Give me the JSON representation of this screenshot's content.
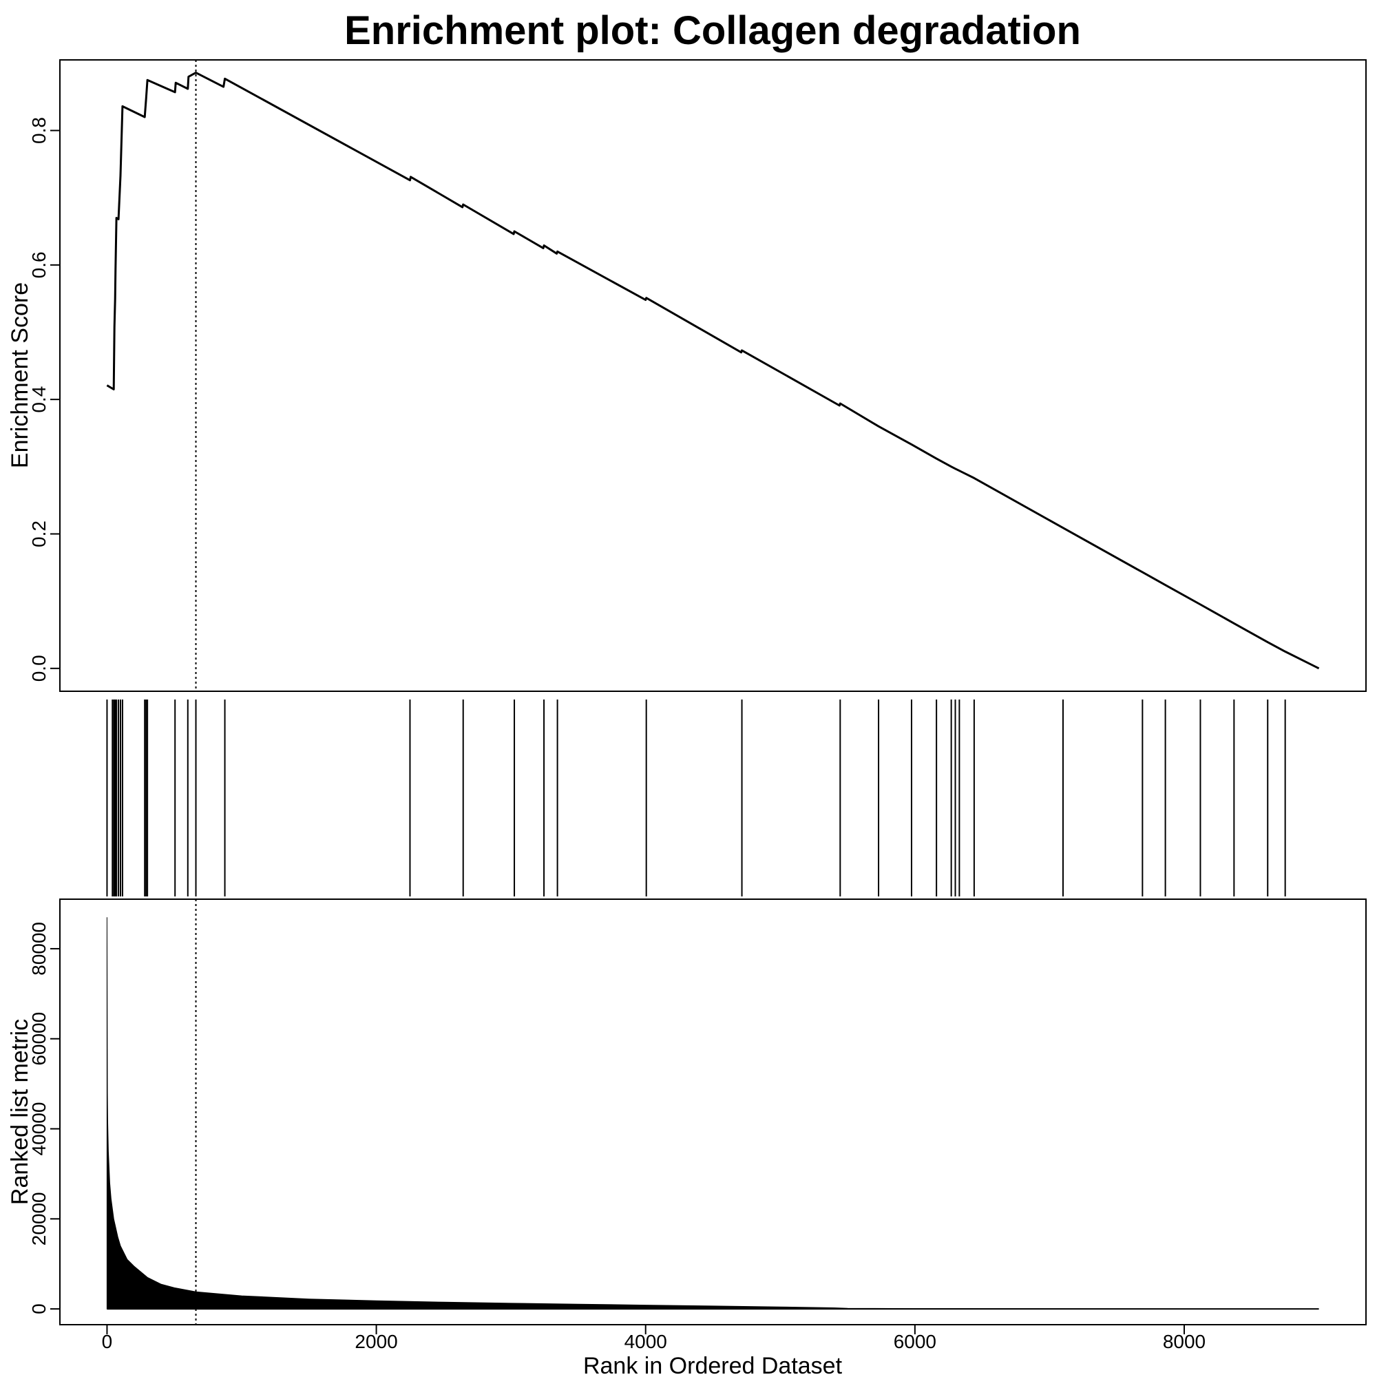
{
  "chart_data": {
    "type": "line",
    "title": "Enrichment plot: Collagen degradation",
    "xlabel": "Rank in Ordered Dataset",
    "xlim": [
      -350,
      9350
    ],
    "x_ticks": [
      0,
      2000,
      4000,
      6000,
      8000
    ],
    "x_tick_labels": [
      "0",
      "2000",
      "4000",
      "6000",
      "8000"
    ],
    "panels": {
      "enrichment": {
        "ylabel": "Enrichment Score",
        "ylim": [
          -0.034,
          0.905
        ],
        "y_ticks": [
          0.0,
          0.2,
          0.4,
          0.6,
          0.8
        ],
        "y_tick_labels": [
          "0.0",
          "0.2",
          "0.4",
          "0.6",
          "0.8"
        ],
        "series": [
          {
            "x": [
              0,
              50,
              55,
              60,
              63,
              70,
              85,
              100,
              115,
              280,
              290,
              300,
              505,
              510,
              600,
              605,
              660,
              865,
              875,
              2250,
              2255,
              2640,
              2645,
              3020,
              3025,
              3240,
              3245,
              3340,
              3345,
              4000,
              4005,
              4710,
              4715,
              5440,
              5445,
              5730,
              5975,
              6160,
              6270,
              6300,
              6330,
              6440,
              7100,
              7690,
              7860,
              8120,
              8370,
              8620,
              8750,
              9000
            ],
            "y": [
              0.421,
              0.415,
              0.508,
              0.549,
              0.594,
              0.67,
              0.668,
              0.733,
              0.836,
              0.82,
              0.847,
              0.875,
              0.857,
              0.871,
              0.862,
              0.88,
              0.886,
              0.865,
              0.877,
              0.726,
              0.731,
              0.686,
              0.69,
              0.646,
              0.65,
              0.625,
              0.629,
              0.617,
              0.62,
              0.548,
              0.551,
              0.47,
              0.473,
              0.391,
              0.394,
              0.36,
              0.333,
              0.312,
              0.3,
              0.297,
              0.294,
              0.283,
              0.209,
              0.143,
              0.124,
              0.095,
              0.067,
              0.039,
              0.025,
              0.0
            ]
          }
        ],
        "peak_rank": 660
      },
      "hits": {
        "ranks": [
          0,
          40,
          50,
          55,
          60,
          63,
          70,
          85,
          100,
          115,
          280,
          290,
          300,
          505,
          600,
          660,
          875,
          2250,
          2645,
          3025,
          3245,
          3345,
          4005,
          4715,
          5445,
          5730,
          5975,
          6160,
          6270,
          6300,
          6330,
          6440,
          7100,
          7690,
          7860,
          8120,
          8370,
          8620,
          8750
        ]
      },
      "metric": {
        "type": "area",
        "ylabel": "Ranked list metric",
        "ylim": [
          -3500,
          91000
        ],
        "y_ticks": [
          0,
          20000,
          40000,
          60000,
          80000
        ],
        "y_tick_labels": [
          "0",
          "20000",
          "40000",
          "60000",
          "80000"
        ],
        "series": [
          {
            "x": [
              0,
              3,
              5,
              10,
              20,
              30,
              50,
              80,
              100,
              150,
              200,
              300,
              400,
              500,
              660,
              1000,
              1500,
              2000,
              2500,
              3000,
              3500,
              4000,
              4500,
              5000,
              5400,
              5500,
              6000,
              7000,
              8000,
              9000
            ],
            "y": [
              87000,
              48000,
              42000,
              35000,
              28000,
              24500,
              20000,
              16000,
              14000,
              11000,
              9500,
              7000,
              5500,
              4700,
              3800,
              2900,
              2200,
              1800,
              1500,
              1250,
              1050,
              850,
              650,
              450,
              250,
              120,
              80,
              40,
              20,
              0
            ]
          }
        ]
      }
    }
  }
}
